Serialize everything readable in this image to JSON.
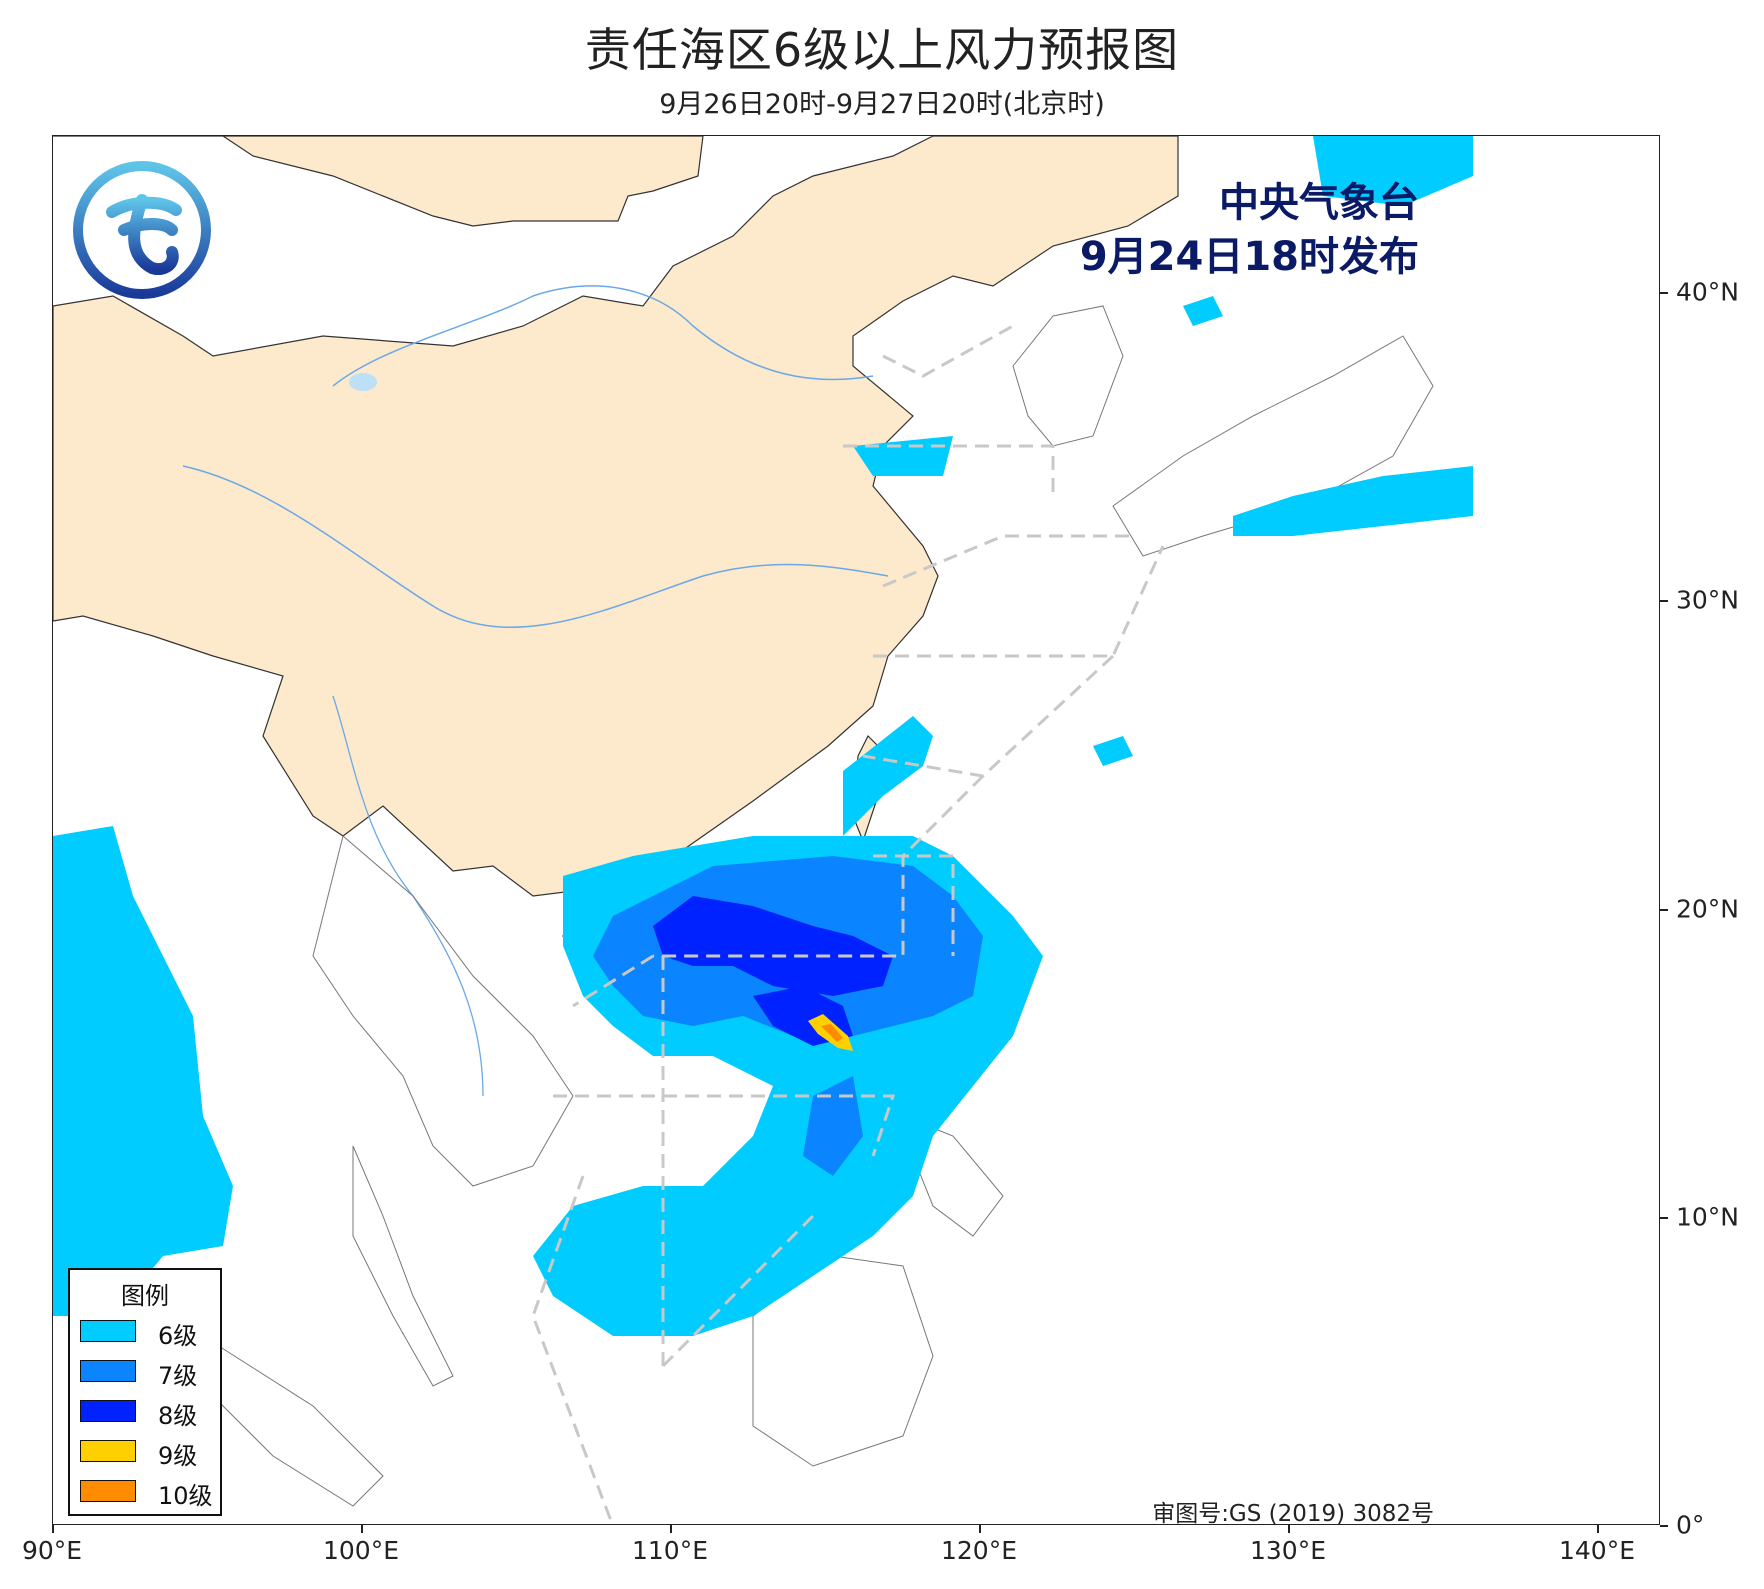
{
  "title": "责任海区6级以上风力预报图",
  "subtitle": "9月26日20时-9月27日20时(北京时)",
  "issuer": {
    "name": "中央气象台",
    "time": "9月24日18时发布"
  },
  "review_number": "审图号:GS (2019) 3082号",
  "axes": {
    "x_ticks": [
      "90°E",
      "100°E",
      "110°E",
      "120°E",
      "130°E",
      "140°E"
    ],
    "y_ticks": [
      "40°N",
      "30°N",
      "20°N",
      "10°N",
      "0°"
    ],
    "lon_range": [
      90,
      142
    ],
    "lat_range": [
      0,
      45
    ]
  },
  "legend": {
    "title": "图例",
    "items": [
      {
        "label": "6级",
        "color": "#00ccff"
      },
      {
        "label": "7级",
        "color": "#0a84ff"
      },
      {
        "label": "8级",
        "color": "#0022ff"
      },
      {
        "label": "9级",
        "color": "#ffd000"
      },
      {
        "label": "10级",
        "color": "#ff8c00"
      }
    ]
  },
  "colors": {
    "land_china": "#fde9cb",
    "sea": "#ffffff",
    "border": "#333333",
    "river": "#6aa8e8",
    "zone_line": "#c8c8c8"
  }
}
